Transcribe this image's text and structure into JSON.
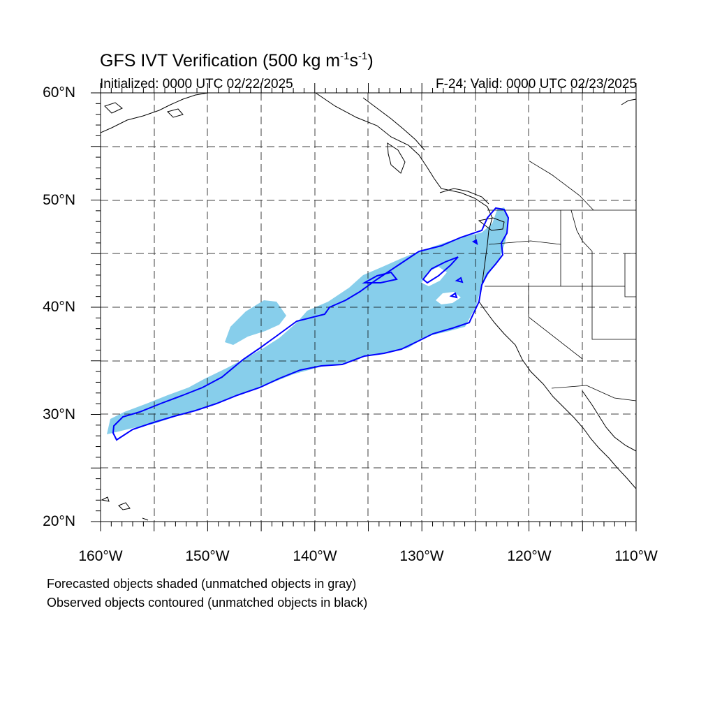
{
  "title": {
    "main": "GFS IVT Verification (500 kg m",
    "exp1": "-1",
    "mid": "s",
    "exp2": "-1",
    "end": ")"
  },
  "initialized": "Initialized: 0000 UTC 02/22/2025",
  "valid": "F-24: Valid: 0000 UTC 02/23/2025",
  "axes": {
    "lat_labels": [
      "60°N",
      "50°N",
      "40°N",
      "30°N",
      "20°N"
    ],
    "lon_labels": [
      "160°W",
      "150°W",
      "140°W",
      "130°W",
      "120°W",
      "110°W"
    ],
    "lat_range": [
      20,
      60
    ],
    "lon_range": [
      -160,
      -110
    ],
    "grid": "dashed, every 5 degrees"
  },
  "legend": {
    "line1": "Forecasted objects shaded (unmatched objects in gray)",
    "line2": "Observed objects contoured (unmatched objects in black)"
  },
  "colors": {
    "forecast_fill": "#87ceeb",
    "observed_contour": "#0000ff",
    "coastline": "#000000",
    "grid": "#000000"
  }
}
